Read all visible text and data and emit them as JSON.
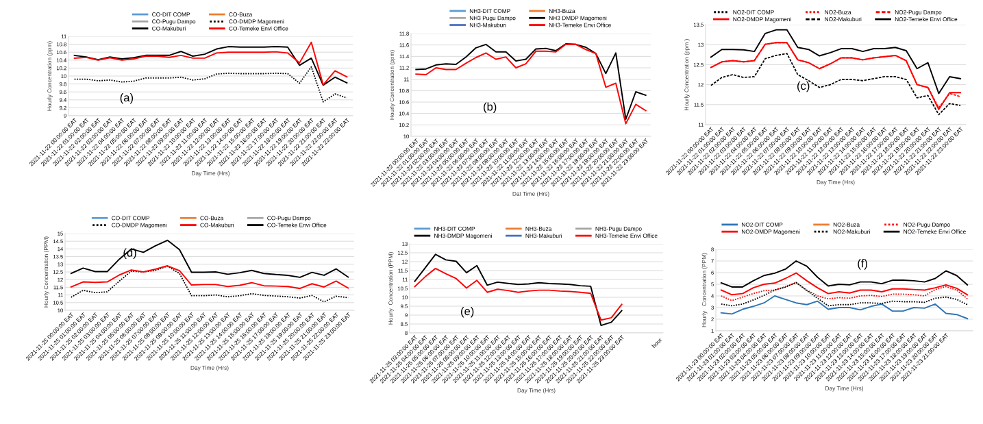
{
  "chart_data": [
    {
      "type": "line",
      "ylabel": "Hourly Concentration (ppm)",
      "xlabel": "Day Time (Hrs)",
      "annotations": [
        "(a)"
      ],
      "grid": "y",
      "legend": "top",
      "ylim": [
        9,
        11
      ],
      "yticks": [
        9,
        9.2,
        9.4,
        9.6,
        9.8,
        10,
        10.2,
        10.4,
        10.6,
        10.8,
        11
      ],
      "categories": [
        "2021-11-22 00:00:00 EAT",
        "2021-11-22 01:00:00 EAT",
        "2021-11-22 02:00:00 EAT",
        "2021-11-22 03:00:00 EAT",
        "2021-11-22 04:00:00 EAT",
        "2021-11-22 05:00:00 EAT",
        "2021-11-22 06:00:00 EAT",
        "2021-11-22 07:00:00 EAT",
        "2021-11-22 08:00:00 EAT",
        "2021-11-22 09:00:00 EAT",
        "2021-11-22 10:00:00 EAT",
        "2021-11-22 11:00:00 EAT",
        "2021-11-22 12:00:00 EAT",
        "2021-11-22 13:00:00 EAT",
        "2021-11-22 14:00:00 EAT",
        "2021-11-22 15:00:00 EAT",
        "2021-11-22 16:00:00 EAT",
        "2021-11-22 17:00:00 EAT",
        "2021-11-22 18:00:00 EAT",
        "2021-11-22 19:00:00 EAT",
        "2021-11-22 20:00:00 EAT",
        "2021-11-22 21:00:00 EAT",
        "2021-11-22 22:00:00 EAT",
        "2021-11-22 23:00:00 EAT"
      ],
      "series": [
        {
          "name": "CO-DIT COMP",
          "color": "#5b9bd5",
          "line_style": "solid",
          "values": [
            null,
            null,
            null,
            null,
            null,
            null,
            null,
            null,
            null,
            null,
            null,
            null,
            null,
            null,
            null,
            null,
            null,
            null,
            null,
            null,
            null,
            null,
            null,
            null
          ]
        },
        {
          "name": "CO-Buza",
          "color": "#ed7d31",
          "line_style": "solid",
          "values": [
            null,
            null,
            null,
            null,
            null,
            null,
            null,
            null,
            null,
            null,
            null,
            null,
            null,
            null,
            null,
            null,
            null,
            null,
            null,
            null,
            null,
            null,
            null,
            null
          ]
        },
        {
          "name": "CO-Pugu Dampo",
          "color": "#a5a5a5",
          "line_style": "solid",
          "values": [
            null,
            null,
            null,
            null,
            null,
            null,
            null,
            null,
            null,
            null,
            null,
            null,
            null,
            null,
            null,
            null,
            null,
            null,
            null,
            null,
            null,
            null,
            null,
            null
          ]
        },
        {
          "name": "CO-DMDP Magomeni",
          "color": "#000000",
          "line_style": "dotted",
          "values": [
            9.92,
            9.92,
            9.88,
            9.9,
            9.85,
            9.87,
            9.95,
            9.95,
            9.95,
            9.97,
            9.9,
            9.93,
            10.05,
            10.07,
            10.06,
            10.06,
            10.06,
            10.07,
            10.06,
            9.82,
            10.23,
            9.35,
            9.55,
            9.45
          ]
        },
        {
          "name": "CO-Makuburi",
          "color": "#000000",
          "line_style": "solid",
          "values": [
            10.52,
            10.48,
            10.41,
            10.48,
            10.43,
            10.46,
            10.52,
            10.52,
            10.52,
            10.62,
            10.5,
            10.55,
            10.68,
            10.74,
            10.73,
            10.73,
            10.73,
            10.74,
            10.73,
            10.27,
            10.45,
            9.77,
            9.97,
            9.83
          ]
        },
        {
          "name": "CO-Temeke Envi Office",
          "color": "#ff0000",
          "line_style": "solid",
          "values": [
            10.45,
            10.47,
            10.4,
            10.46,
            10.4,
            10.43,
            10.5,
            10.5,
            10.47,
            10.52,
            10.45,
            10.45,
            10.58,
            10.6,
            10.6,
            10.6,
            10.6,
            10.61,
            10.58,
            10.33,
            10.85,
            9.78,
            10.13,
            9.98
          ]
        }
      ]
    },
    {
      "type": "line",
      "ylabel": "Hourly Concentration (ppm)",
      "xlabel": "Dat Time (Hrs)",
      "annotations": [
        "(b)"
      ],
      "grid": "y",
      "legend": "top",
      "ylim": [
        10,
        11.8
      ],
      "yticks": [
        10,
        10.2,
        10.4,
        10.6,
        10.8,
        11,
        11.2,
        11.4,
        11.6,
        11.8
      ],
      "categories": [
        "2021-11-22 00:00:00 EAT",
        "2021-11-22 01:00:00 EAT",
        "2021-11-22 02:00:00 EAT",
        "2021-11-22 03:00:00 EAT",
        "2021-11-22 04:00:00 EAT",
        "2021-11-22 05:00:00 EAT",
        "2021-11-22 06:00:00 EAT",
        "2021-11-22 07:00:00 EAT",
        "2021-11-22 08:00:00 EAT",
        "2021-11-22 09:00:00 EAT",
        "2021-11-22 10:00:00 EAT",
        "2021-11-22 11:00:00 EAT",
        "2021-11-22 12:00:00 EAT",
        "2021-11-22 13:00:00 EAT",
        "2021-11-22 14:00:00 EAT",
        "2021-11-22 15:00:00 EAT",
        "2021-11-22 16:00:00 EAT",
        "2021-11-22 17:00:00 EAT",
        "2021-11-22 18:00:00 EAT",
        "2021-11-22 19:00:00 EAT",
        "2021-11-22 20:00:00 EAT",
        "2021-11-22 21:00:00 EAT",
        "2021-11-22 22:00:00 EAT",
        "2021-11-22 23:00:00 EAT"
      ],
      "series": [
        {
          "name": "NH3-DIT COMP",
          "color": "#5b9bd5",
          "line_style": "solid",
          "values": [
            null,
            null,
            null,
            null,
            null,
            null,
            null,
            null,
            null,
            null,
            null,
            null,
            null,
            null,
            null,
            null,
            null,
            null,
            null,
            null,
            null,
            null,
            null,
            null
          ]
        },
        {
          "name": "NH3-Buza",
          "color": "#ed7d31",
          "line_style": "solid",
          "values": [
            null,
            null,
            null,
            null,
            null,
            null,
            null,
            null,
            null,
            null,
            null,
            null,
            null,
            null,
            null,
            null,
            null,
            null,
            null,
            null,
            null,
            null,
            null,
            null
          ]
        },
        {
          "name": "NH3 Pugu Dampo",
          "color": "#a5a5a5",
          "line_style": "solid",
          "values": [
            null,
            null,
            null,
            null,
            null,
            null,
            null,
            null,
            null,
            null,
            null,
            null,
            null,
            null,
            null,
            null,
            null,
            null,
            null,
            null,
            null,
            null,
            null,
            null
          ]
        },
        {
          "name": "NH3 DMDP Magomeni",
          "color": "#000000",
          "line_style": "solid",
          "values": [
            11.17,
            11.18,
            11.25,
            11.27,
            11.26,
            11.39,
            11.55,
            11.61,
            11.48,
            11.48,
            11.32,
            11.35,
            11.53,
            11.54,
            11.5,
            11.62,
            11.61,
            11.56,
            11.45,
            11.1,
            11.46,
            10.3,
            10.78,
            10.72
          ]
        },
        {
          "name": "NH3-Makuburi",
          "color": "#4472c4",
          "line_style": "solid",
          "values": [
            null,
            null,
            null,
            null,
            null,
            null,
            null,
            null,
            null,
            null,
            null,
            null,
            null,
            null,
            null,
            null,
            null,
            null,
            null,
            null,
            null,
            null,
            null,
            null
          ]
        },
        {
          "name": "NH3-Temeke Envi Office",
          "color": "#ff0000",
          "line_style": "solid",
          "values": [
            11.09,
            11.08,
            11.2,
            11.17,
            11.17,
            11.28,
            11.38,
            11.46,
            11.35,
            11.39,
            11.2,
            11.27,
            11.49,
            11.49,
            11.48,
            11.61,
            11.61,
            11.52,
            11.45,
            10.86,
            10.93,
            10.22,
            10.56,
            10.45
          ]
        }
      ]
    },
    {
      "type": "line",
      "ylabel": "Hourly Concentration (ppm )",
      "xlabel": "Day Time (Hrs)",
      "annotations": [
        "(c)"
      ],
      "grid": "y",
      "legend": "top",
      "ylim": [
        11,
        13.5
      ],
      "yticks": [
        11,
        11.5,
        12,
        12.5,
        13,
        13.5
      ],
      "categories": [
        "2021-11-22 00:00:00 EAT",
        "2021-11-22 01:00:00 EAT",
        "2021-11-22 02:00:00 EAT",
        "2021-11-22 03:00:00 EAT",
        "2021-11-22 04:00:00 EAT",
        "2021-11-22 05:00:00 EAT",
        "2021-11-22 06:00:00 EAT",
        "2021-11-22 07:00:00 EAT",
        "2021-11-22 08:00:00 EAT",
        "2021-11-22 09:00:00 EAT",
        "2021-11-22 10:00:00 EAT",
        "2021-11-22 11:00:00 EAT",
        "2021-11-22 12:00:00 EAT",
        "2021-11-22 13:00:00 EAT",
        "2021-11-22 14:00:00 EAT",
        "2021-11-22 15:00:00 EAT",
        "2021-11-22 16:00:00 EAT",
        "2021-11-22 17:00:00 EAT",
        "2021-11-22 18:00:00 EAT",
        "2021-11-22 19:00:00 EAT",
        "2021-11-22 20:00:00 EAT",
        "2021-11-22 21:00:00 EAT",
        "2021-11-22 22:00:00 EAT",
        "2021-11-22 23:00:00 EAT"
      ],
      "series": [
        {
          "name": "NO2-DIT COMP",
          "color": "#000000",
          "line_style": "dotted",
          "values": [
            null,
            null,
            null,
            null,
            null,
            null,
            null,
            null,
            null,
            null,
            null,
            null,
            null,
            null,
            null,
            null,
            null,
            null,
            null,
            null,
            null,
            null,
            null,
            null
          ]
        },
        {
          "name": "NO2-Buza",
          "color": "#ff0000",
          "line_style": "dotted",
          "values": [
            null,
            null,
            null,
            null,
            null,
            null,
            null,
            null,
            null,
            null,
            null,
            null,
            null,
            null,
            null,
            null,
            null,
            null,
            null,
            null,
            null,
            null,
            null,
            null
          ]
        },
        {
          "name": "NO2-Pugu Dampo",
          "color": "#ff0000",
          "line_style": "dashed",
          "values": [
            12.43,
            12.57,
            12.6,
            12.57,
            12.6,
            13.01,
            13.05,
            13.05,
            12.62,
            12.55,
            12.4,
            12.52,
            12.67,
            12.67,
            12.62,
            12.67,
            12.7,
            12.73,
            12.6,
            12.0,
            11.93,
            11.42,
            11.78,
            11.7
          ]
        },
        {
          "name": "NO2-DMDP Magomeni",
          "color": "#ff0000",
          "line_style": "solid",
          "values": [
            12.43,
            12.57,
            12.6,
            12.57,
            12.6,
            13.01,
            13.05,
            13.05,
            12.62,
            12.55,
            12.4,
            12.52,
            12.67,
            12.67,
            12.62,
            12.67,
            12.7,
            12.73,
            12.6,
            12.0,
            11.93,
            11.38,
            11.8,
            11.8
          ]
        },
        {
          "name": "NO2-Makuburi",
          "color": "#000000",
          "line_style": "dashed",
          "values": [
            11.98,
            12.18,
            12.25,
            12.18,
            12.2,
            12.65,
            12.73,
            12.78,
            12.25,
            12.1,
            11.93,
            12.0,
            12.13,
            12.13,
            12.1,
            12.15,
            12.2,
            12.2,
            12.13,
            11.67,
            11.73,
            11.25,
            11.53,
            11.48
          ]
        },
        {
          "name": "NO2-Temeke Envi Office",
          "color": "#000000",
          "line_style": "solid",
          "values": [
            12.69,
            12.88,
            12.88,
            12.87,
            12.83,
            13.28,
            13.37,
            13.37,
            12.93,
            12.88,
            12.72,
            12.8,
            12.9,
            12.9,
            12.83,
            12.9,
            12.9,
            12.93,
            12.85,
            12.4,
            12.55,
            11.78,
            12.2,
            12.15
          ]
        }
      ]
    },
    {
      "type": "line",
      "ylabel": "Hourly Concentration (PPM)",
      "xlabel": "Day Time (Hrs)",
      "annotations": [
        "(d)"
      ],
      "grid": "y",
      "legend": "top",
      "ylim": [
        10,
        15
      ],
      "yticks": [
        10,
        10.5,
        11,
        11.5,
        12,
        12.5,
        13,
        13.5,
        14,
        14.5,
        15
      ],
      "categories": [
        "2021-11-25 00:00:00 EAT",
        "2021-11-25 01:00:00 EAT",
        "2021-11-25 02:00:00 EAT",
        "2021-11-25 03:00:00 EAT",
        "2021-11-25 04:00:00 EAT",
        "2021-11-25 05:00:00 EAT",
        "2021-11-25 06:00:00 EAT",
        "2021-11-25 07:00:00 EAT",
        "2021-11-25 08:00:00 EAT",
        "2021-11-25 09:00:00 EAT",
        "2021-11-25 10:00:00 EAT",
        "2021-11-25 11:00:00 EAT",
        "2021-11-25 12:00:00 EAT",
        "2021-11-25 13:00:00 EAT",
        "2021-11-25 14:00:00 EAT",
        "2021-11-25 15:00:00 EAT",
        "2021-11-25 16:00:00 EAT",
        "2021-11-25 17:00:00 EAT",
        "2021-11-25 18:00:00 EAT",
        "2021-11-25 19:00:00 EAT",
        "2021-11-25 20:00:00 EAT",
        "2021-11-25 21:00:00 EAT",
        "2021-11-25 22:00:00 EAT",
        "2021-11-25 23:00:00 EAT"
      ],
      "series": [
        {
          "name": "CO-DIT COMP",
          "color": "#5b9bd5",
          "line_style": "solid",
          "values": [
            null,
            null,
            null,
            null,
            null,
            null,
            null,
            null,
            null,
            null,
            null,
            null,
            null,
            null,
            null,
            null,
            null,
            null,
            null,
            null,
            null,
            null,
            null,
            null
          ]
        },
        {
          "name": "CO-Buza",
          "color": "#ed7d31",
          "line_style": "solid",
          "values": [
            null,
            null,
            null,
            null,
            null,
            null,
            null,
            null,
            null,
            null,
            null,
            null,
            null,
            null,
            null,
            null,
            null,
            null,
            null,
            null,
            null,
            null,
            null,
            null
          ]
        },
        {
          "name": "CO-Pugu Dampo",
          "color": "#a5a5a5",
          "line_style": "solid",
          "values": [
            null,
            null,
            null,
            null,
            null,
            null,
            null,
            null,
            null,
            null,
            null,
            null,
            null,
            null,
            null,
            null,
            null,
            null,
            null,
            null,
            null,
            null,
            null,
            null
          ]
        },
        {
          "name": "CO-DMDP Magomeni",
          "color": "#000000",
          "line_style": "dotted",
          "values": [
            10.85,
            11.3,
            11.15,
            11.2,
            11.9,
            12.55,
            12.5,
            12.6,
            12.88,
            12.4,
            10.95,
            10.95,
            11.0,
            10.88,
            10.95,
            11.08,
            10.97,
            10.93,
            10.88,
            10.8,
            10.97,
            10.55,
            10.92,
            10.82
          ]
        },
        {
          "name": "CO-Makuburi",
          "color": "#ff0000",
          "line_style": "solid",
          "values": [
            11.52,
            11.85,
            11.82,
            11.85,
            12.3,
            12.63,
            12.5,
            12.68,
            12.9,
            12.58,
            11.65,
            11.68,
            11.68,
            11.55,
            11.63,
            11.8,
            11.6,
            11.58,
            11.55,
            11.42,
            11.73,
            11.52,
            11.9,
            11.45
          ]
        },
        {
          "name": "CO-Temeke Envi Office",
          "color": "#000000",
          "line_style": "solid",
          "values": [
            12.4,
            12.75,
            12.52,
            12.52,
            13.33,
            14.0,
            13.78,
            14.2,
            14.56,
            13.95,
            12.48,
            12.48,
            12.5,
            12.35,
            12.45,
            12.6,
            12.4,
            12.33,
            12.28,
            12.15,
            12.47,
            12.28,
            12.7,
            12.17
          ]
        }
      ]
    },
    {
      "type": "line",
      "ylabel": "Hourly  Concentration (PPM)",
      "xlabel": "Day Time (Hrs)",
      "annotations": [
        "(e)",
        "hour"
      ],
      "grid": "y",
      "legend": "top",
      "ylim": [
        8,
        13
      ],
      "yticks": [
        8,
        8.5,
        9,
        9.5,
        10,
        10.5,
        11,
        11.5,
        12,
        12.5,
        13
      ],
      "categories": [
        "2021-11-25 03:00:00 EAT",
        "2021-11-25 04:00:00 EAT",
        "2021-11-25 05:00:00 EAT",
        "2021-11-25 06:00:00 EAT",
        "2021-11-25 07:00:00 EAT",
        "2021-11-25 08:00:00 EAT",
        "2021-11-25 09:00:00 EAT",
        "2021-11-25 10:00:00 EAT",
        "2021-11-25 11:00:00 EAT",
        "2021-11-25 12:00:00 EAT",
        "2021-11-25 13:00:00 EAT",
        "2021-11-25 14:00:00 EAT",
        "2021-11-25 15:00:00 EAT",
        "2021-11-25 16:00:00 EAT",
        "2021-11-25 17:00:00 EAT",
        "2021-11-25 18:00:00 EAT",
        "2021-11-25 19:00:00 EAT",
        "2021-11-25 20:00:00 EAT",
        "2021-11-25 21:00:00 EAT",
        "2021-11-25 22:00:00 EAT",
        "2021-11-25 23:00:00 EAT"
      ],
      "series": [
        {
          "name": "NH3-DIT COMP",
          "color": "#5b9bd5",
          "line_style": "solid",
          "values": [
            null,
            null,
            null,
            null,
            null,
            null,
            null,
            null,
            null,
            null,
            null,
            null,
            null,
            null,
            null,
            null,
            null,
            null,
            null,
            null,
            null
          ]
        },
        {
          "name": "NH3-Buza",
          "color": "#ed7d31",
          "line_style": "solid",
          "values": [
            null,
            null,
            null,
            null,
            null,
            null,
            null,
            null,
            null,
            null,
            null,
            null,
            null,
            null,
            null,
            null,
            null,
            null,
            null,
            null,
            null
          ]
        },
        {
          "name": "NH3-Pugu Dampo",
          "color": "#a5a5a5",
          "line_style": "solid",
          "values": [
            null,
            null,
            null,
            null,
            null,
            null,
            null,
            null,
            null,
            null,
            null,
            null,
            null,
            null,
            null,
            null,
            null,
            null,
            null,
            null,
            null
          ]
        },
        {
          "name": "NH3-DMDP Magomeni",
          "color": "#000000",
          "line_style": "solid",
          "values": [
            10.9,
            11.65,
            12.41,
            12.1,
            12.02,
            11.38,
            11.78,
            10.68,
            10.85,
            10.78,
            10.72,
            10.75,
            10.82,
            10.77,
            10.75,
            10.72,
            10.65,
            10.62,
            8.42,
            8.6,
            9.25
          ]
        },
        {
          "name": "NH3-Makuburi",
          "color": "#4472c4",
          "line_style": "solid",
          "values": [
            null,
            null,
            null,
            null,
            null,
            null,
            null,
            null,
            null,
            null,
            null,
            null,
            null,
            null,
            null,
            null,
            null,
            null,
            null,
            null,
            null
          ]
        },
        {
          "name": "NH3-Temeke Envi Office",
          "color": "#ff0000",
          "line_style": "solid",
          "values": [
            10.6,
            11.15,
            11.62,
            11.32,
            11.05,
            10.52,
            10.95,
            10.28,
            10.45,
            10.38,
            10.28,
            10.35,
            10.4,
            10.4,
            10.35,
            10.33,
            10.28,
            10.22,
            8.72,
            8.85,
            9.6
          ]
        }
      ]
    },
    {
      "type": "line",
      "ylabel": "Hourly   Concentration (PPM)",
      "xlabel": "Day Time (Hrs)",
      "annotations": [
        "(f)"
      ],
      "grid": "y",
      "legend": "top",
      "ylim": [
        1,
        8
      ],
      "yticks": [
        1,
        2,
        3,
        4,
        5,
        6,
        7,
        8
      ],
      "categories": [
        "2021-11-23 00:00:00 EAT",
        "2021-11-23 01:00:00 EAT",
        "2021-11-23 02:00:00 EAT",
        "2021-11-23 03:00:00 EAT",
        "2021-11-23 04:00:00 EAT",
        "2021-11-23 05:00:00 EAT",
        "2021-11-23 06:00:00 EAT",
        "2021-11-23 07:00:00 EAT",
        "2021-11-23 08:00:00 EAT",
        "2021-11-23 09:00:00 EAT",
        "2021-11-23 10:00:00 EAT",
        "2021-11-23 11:00:00 EAT",
        "2021-11-23 12:00:00 EAT",
        "2021-11-23 13:00:00 EAT",
        "2021-11-23 14:00:00 EAT",
        "2021-11-23 15:00:00 EAT",
        "2021-11-23 16:00:00 EAT",
        "2021-11-23 17:00:00 EAT",
        "2021-11-23 18:00:00 EAT",
        "2021-11-23 19:00:00 EAT",
        "2021-11-23 20:00:00 EAT",
        "2021-11-23 21:00:00 EAT",
        null,
        null
      ],
      "series": [
        {
          "name": "NO2-DIT COMP",
          "color": "#2e75b6",
          "line_style": "solid",
          "values": [
            2.55,
            2.45,
            2.85,
            3.1,
            3.4,
            4.0,
            3.7,
            3.4,
            3.25,
            3.55,
            2.85,
            3.0,
            3.0,
            2.8,
            3.1,
            3.3,
            2.7,
            2.7,
            3.0,
            2.95,
            3.3,
            2.5,
            2.4,
            2.05
          ]
        },
        {
          "name": "NO2-Buza",
          "color": "#ed7d31",
          "line_style": "solid",
          "values": [
            null,
            null,
            null,
            null,
            null,
            null,
            null,
            null,
            null,
            null,
            null,
            null,
            null,
            null,
            null,
            null,
            null,
            null,
            null,
            null,
            null,
            null,
            null,
            null
          ]
        },
        {
          "name": "NO2-Pugu Dampo",
          "color": "#ff0000",
          "line_style": "dotted",
          "values": [
            4.0,
            3.6,
            3.9,
            4.2,
            4.45,
            4.5,
            4.8,
            5.15,
            4.5,
            4.0,
            3.75,
            3.85,
            3.8,
            4.0,
            4.05,
            3.95,
            4.15,
            4.15,
            4.1,
            4.0,
            4.55,
            4.8,
            4.5,
            3.75
          ]
        },
        {
          "name": "NO2-DMDP Magomeni",
          "color": "#ff0000",
          "line_style": "solid",
          "values": [
            4.5,
            4.1,
            4.2,
            4.7,
            5.0,
            5.1,
            5.5,
            5.97,
            5.3,
            4.7,
            4.2,
            4.35,
            4.25,
            4.5,
            4.5,
            4.35,
            4.6,
            4.6,
            4.55,
            4.5,
            4.7,
            4.95,
            4.65,
            4.1
          ]
        },
        {
          "name": "NO2-Makuburi",
          "color": "#000000",
          "line_style": "dotted",
          "values": [
            3.3,
            3.15,
            3.3,
            3.65,
            4.05,
            4.5,
            4.75,
            5.15,
            4.45,
            3.8,
            3.15,
            3.25,
            3.25,
            3.4,
            3.4,
            3.35,
            3.55,
            3.5,
            3.5,
            3.45,
            3.8,
            3.9,
            3.7,
            3.25
          ]
        },
        {
          "name": "NO2-Temeke Envi Office",
          "color": "#000000",
          "line_style": "solid",
          "values": [
            5.12,
            4.77,
            4.77,
            5.3,
            5.75,
            5.95,
            6.3,
            7.0,
            6.55,
            5.6,
            4.85,
            5.0,
            4.95,
            5.2,
            5.2,
            5.05,
            5.35,
            5.35,
            5.3,
            5.2,
            5.5,
            6.15,
            5.75,
            4.95
          ]
        }
      ]
    }
  ]
}
